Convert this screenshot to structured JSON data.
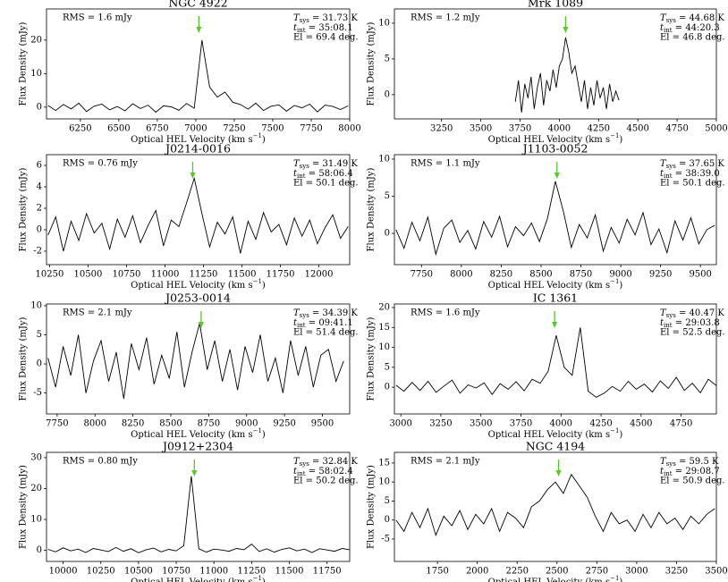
{
  "chart_data": [
    {
      "type": "line",
      "title": "NGC 4922",
      "color": "#000000",
      "arrow_color": "#55cc22",
      "arrow_x": 7020,
      "annotations": {
        "rms": "RMS = 1.6 mJy",
        "tsys": [
          "T",
          "sys",
          " = 31.73 K"
        ],
        "tint": [
          "t",
          "int",
          " = 35:08.1"
        ],
        "el": "El = 69.4 deg."
      },
      "xlabel": [
        "Optical HEL Velocity (km s",
        "−1",
        ")"
      ],
      "ylabel": "Flux Density (mJy)",
      "xlim": [
        6030,
        8000
      ],
      "ylim": [
        -3.5,
        29.3
      ],
      "xticks": [
        6250,
        6500,
        6750,
        7000,
        7250,
        7500,
        7750,
        8000
      ],
      "yticks": [
        0,
        10,
        20
      ],
      "x": [
        6040,
        6090,
        6140,
        6190,
        6240,
        6290,
        6340,
        6390,
        6440,
        6490,
        6540,
        6590,
        6640,
        6690,
        6740,
        6790,
        6840,
        6890,
        6940,
        6990,
        7040,
        7090,
        7140,
        7190,
        7240,
        7290,
        7340,
        7390,
        7440,
        7490,
        7540,
        7590,
        7640,
        7690,
        7740,
        7790,
        7840,
        7890,
        7940,
        7990
      ],
      "values": [
        0.5,
        -1,
        0.8,
        -0.5,
        1.2,
        -1.3,
        0.3,
        0.9,
        -0.8,
        0.2,
        -1.1,
        1.0,
        -0.4,
        0.6,
        -1.5,
        0.4,
        0.1,
        -0.9,
        1.1,
        -0.3,
        20,
        6,
        3,
        4.5,
        1.5,
        0.8,
        -0.6,
        1.2,
        -1.0,
        0.3,
        0.7,
        -1.2,
        0.5,
        -0.2,
        0.9,
        -1.4,
        0.6,
        0.2,
        -0.7,
        0.4
      ]
    },
    {
      "type": "line",
      "title": "Mrk 1089",
      "color": "#000000",
      "arrow_color": "#55cc22",
      "arrow_x": 4040,
      "annotations": {
        "rms": "RMS = 1.2 mJy",
        "tsys": [
          "T",
          "sys",
          " = 44.68 K"
        ],
        "tint": [
          "t",
          "int",
          " = 44:20.3"
        ],
        "el": "El = 46.8 deg."
      },
      "xlabel": [
        "Optical HEL Velocity (km s",
        "−1",
        ")"
      ],
      "ylabel": "Flux Density (mJy)",
      "xlim": [
        2950,
        5000
      ],
      "ylim": [
        -3.4,
        12
      ],
      "xticks": [
        3250,
        3500,
        3750,
        4000,
        4250,
        4500,
        4750,
        5000
      ],
      "yticks": [
        0,
        5,
        10
      ],
      "x": [
        3720,
        3740,
        3760,
        3780,
        3800,
        3820,
        3840,
        3860,
        3880,
        3900,
        3920,
        3940,
        3960,
        3980,
        4000,
        4020,
        4040,
        4060,
        4080,
        4100,
        4120,
        4140,
        4160,
        4180,
        4200,
        4220,
        4240,
        4260,
        4280,
        4300,
        4320,
        4340,
        4360,
        4380
      ],
      "values": [
        -1,
        2,
        -2.5,
        1.5,
        -0.5,
        2.5,
        -2,
        1,
        3,
        -1.5,
        2,
        0.5,
        3.5,
        1,
        4,
        5,
        8,
        6,
        3,
        4,
        1.5,
        -1,
        2,
        -2,
        1,
        -1.5,
        2,
        -0.5,
        1,
        -2,
        1.5,
        -1,
        0.5,
        -0.8
      ]
    },
    {
      "type": "line",
      "title": "J0214-0016",
      "color": "#000000",
      "arrow_color": "#55cc22",
      "arrow_x": 11180,
      "annotations": {
        "rms": "RMS = 0.76 mJy",
        "tsys": [
          "T",
          "sys",
          " = 31.49 K"
        ],
        "tint": [
          "t",
          "int",
          " = 58:06.4"
        ],
        "el": "El = 50.1 deg."
      },
      "xlabel": [
        "Optical HEL Velocity (km s",
        "−1",
        ")"
      ],
      "ylabel": "Flux Density (mJy)",
      "xlim": [
        10230,
        12200
      ],
      "ylim": [
        -3.25,
        7
      ],
      "xticks": [
        10250,
        10500,
        10750,
        11000,
        11250,
        11500,
        11750,
        12000
      ],
      "yticks": [
        -2,
        0,
        2,
        4,
        6
      ],
      "x": [
        10240,
        10290,
        10340,
        10390,
        10440,
        10490,
        10540,
        10590,
        10640,
        10690,
        10740,
        10790,
        10840,
        10890,
        10940,
        10990,
        11040,
        11090,
        11140,
        11190,
        11240,
        11290,
        11340,
        11390,
        11440,
        11490,
        11540,
        11590,
        11640,
        11690,
        11740,
        11790,
        11840,
        11890,
        11940,
        11990,
        12040,
        12090,
        12140,
        12190
      ],
      "values": [
        -0.5,
        1.2,
        -2,
        0.8,
        -1,
        1.5,
        -0.3,
        0.6,
        -1.8,
        1,
        -0.7,
        1.3,
        -1.2,
        0.4,
        1.8,
        -1.5,
        0.9,
        0.3,
        2.5,
        4.8,
        1.5,
        -1.6,
        0.7,
        -0.4,
        1.2,
        -2.2,
        0.8,
        -0.9,
        1.6,
        -0.2,
        0.5,
        -1.4,
        1.1,
        -0.6,
        0.9,
        -1.3,
        0.2,
        1.4,
        -0.8,
        0.3
      ]
    },
    {
      "type": "line",
      "title": "J1103-0052",
      "color": "#000000",
      "arrow_color": "#55cc22",
      "arrow_x": 8600,
      "annotations": {
        "rms": "RMS = 1.1 mJy",
        "tsys": [
          "T",
          "sys",
          " = 37.65 K"
        ],
        "tint": [
          "t",
          "int",
          " = 38:39.0"
        ],
        "el": "El = 50.1 deg."
      },
      "xlabel": [
        "Optical HEL Velocity (km s",
        "−1",
        ")"
      ],
      "ylabel": "Flux Density (mJy)",
      "xlim": [
        7580,
        9600
      ],
      "ylim": [
        -4.2,
        10.6
      ],
      "xticks": [
        7750,
        8000,
        8250,
        8500,
        8750,
        9000,
        9250,
        9500
      ],
      "yticks": [
        0,
        5,
        10
      ],
      "x": [
        7590,
        7640,
        7690,
        7740,
        7790,
        7840,
        7890,
        7940,
        7990,
        8040,
        8090,
        8140,
        8190,
        8240,
        8290,
        8340,
        8390,
        8440,
        8490,
        8540,
        8590,
        8640,
        8690,
        8740,
        8790,
        8840,
        8890,
        8940,
        8990,
        9040,
        9090,
        9140,
        9190,
        9240,
        9290,
        9340,
        9390,
        9440,
        9490,
        9540,
        9590
      ],
      "values": [
        0.5,
        -2,
        1.5,
        -1,
        2.2,
        -2.8,
        0.7,
        1.8,
        -1.2,
        0.4,
        -2.1,
        1.6,
        -0.5,
        2.3,
        -1.8,
        0.9,
        -0.3,
        1.4,
        -1.1,
        2,
        7,
        3,
        -1.9,
        1.2,
        -0.6,
        2.5,
        -2.4,
        0.8,
        -1.3,
        1.9,
        -0.2,
        2.8,
        -1.5,
        0.6,
        -2.6,
        1.7,
        -0.9,
        2.1,
        -1.4,
        0.5,
        1.1
      ]
    },
    {
      "type": "line",
      "title": "J0253-0014",
      "color": "#000000",
      "arrow_color": "#55cc22",
      "arrow_x": 8700,
      "annotations": {
        "rms": "RMS = 2.1 mJy",
        "tsys": [
          "T",
          "sys",
          " = 34.39 K"
        ],
        "tint": [
          "t",
          "int",
          " = 09:41.1"
        ],
        "el": "El = 51.4 deg."
      },
      "xlabel": [
        "Optical HEL Velocity (km s",
        "−1",
        ")"
      ],
      "ylabel": "Flux Density (mJy)",
      "xlim": [
        7680,
        9680
      ],
      "ylim": [
        -8.6,
        10.3
      ],
      "xticks": [
        7750,
        8000,
        8250,
        8500,
        8750,
        9000,
        9250,
        9500
      ],
      "yticks": [
        -5,
        0,
        5,
        10
      ],
      "x": [
        7690,
        7740,
        7790,
        7840,
        7890,
        7940,
        7990,
        8040,
        8090,
        8140,
        8190,
        8240,
        8290,
        8340,
        8390,
        8440,
        8490,
        8540,
        8590,
        8640,
        8690,
        8740,
        8790,
        8840,
        8890,
        8940,
        8990,
        9040,
        9090,
        9140,
        9190,
        9240,
        9290,
        9340,
        9390,
        9440,
        9490,
        9540,
        9590,
        9640
      ],
      "values": [
        1,
        -4,
        3,
        -2,
        5,
        -5,
        0.5,
        4,
        -3,
        2,
        -6,
        3.5,
        -1,
        4.5,
        -3.5,
        1.5,
        -2.5,
        5.5,
        -4,
        2,
        7,
        -1,
        4,
        -3,
        2.5,
        -4.5,
        3,
        -1.5,
        5,
        -3,
        1,
        -5,
        4,
        -2,
        3,
        -4,
        1.5,
        2.5,
        -3,
        0.5
      ]
    },
    {
      "type": "line",
      "title": "IC 1361",
      "color": "#000000",
      "arrow_color": "#55cc22",
      "arrow_x": 3960,
      "annotations": {
        "rms": "RMS = 1.6 mJy",
        "tsys": [
          "T",
          "sys",
          " = 40.47 K"
        ],
        "tint": [
          "t",
          "int",
          " = 29:03.8"
        ],
        "el": "El = 52.5 deg."
      },
      "xlabel": [
        "Optical HEL Velocity (km s",
        "−1",
        ")"
      ],
      "ylabel": "Flux Density (mJy)",
      "xlim": [
        2960,
        4970
      ],
      "ylim": [
        -6.7,
        20.9
      ],
      "xticks": [
        3000,
        3250,
        3500,
        3750,
        4000,
        4250,
        4500,
        4750
      ],
      "yticks": [
        0,
        5,
        10,
        15,
        20
      ],
      "x": [
        2970,
        3020,
        3070,
        3120,
        3170,
        3220,
        3270,
        3320,
        3370,
        3420,
        3470,
        3520,
        3570,
        3620,
        3670,
        3720,
        3770,
        3820,
        3870,
        3920,
        3970,
        4020,
        4070,
        4120,
        4170,
        4220,
        4270,
        4320,
        4370,
        4420,
        4470,
        4520,
        4570,
        4620,
        4670,
        4720,
        4770,
        4820,
        4870,
        4920,
        4970
      ],
      "values": [
        0.5,
        -1,
        1.2,
        -0.8,
        1.5,
        -1.3,
        0.3,
        1.8,
        -1.5,
        0.6,
        -0.2,
        1.1,
        -1.8,
        0.9,
        -0.5,
        1.4,
        -0.9,
        2,
        1,
        4,
        13,
        5,
        3,
        15,
        -1,
        -2.5,
        -1.5,
        0.2,
        -1,
        1.5,
        -0.5,
        0.8,
        -1.2,
        1.6,
        -0.3,
        2.5,
        -0.8,
        1,
        -1.4,
        2,
        0.4
      ]
    },
    {
      "type": "line",
      "title": "J0912+2304",
      "color": "#000000",
      "arrow_color": "#55cc22",
      "arrow_x": 10870,
      "annotations": {
        "rms": "RMS = 0.80 mJy",
        "tsys": [
          "T",
          "sys",
          " = 32.84 K"
        ],
        "tint": [
          "t",
          "int",
          " = 58:02.4"
        ],
        "el": "El = 50.2 deg."
      },
      "xlabel": [
        "Optical HEL Velocity (km s",
        "−1",
        ")"
      ],
      "ylabel": "Flux Density (mJy)",
      "xlim": [
        9890,
        11900
      ],
      "ylim": [
        -3.6,
        31.7
      ],
      "xticks": [
        10000,
        10250,
        10500,
        10750,
        11000,
        11250,
        11500,
        11750
      ],
      "yticks": [
        0,
        10,
        20,
        30
      ],
      "x": [
        9900,
        9950,
        10000,
        10050,
        10100,
        10150,
        10200,
        10250,
        10300,
        10350,
        10400,
        10450,
        10500,
        10550,
        10600,
        10650,
        10700,
        10750,
        10800,
        10850,
        10900,
        10950,
        11000,
        11050,
        11100,
        11150,
        11200,
        11250,
        11300,
        11350,
        11400,
        11450,
        11500,
        11550,
        11600,
        11650,
        11700,
        11750,
        11800,
        11850,
        11900
      ],
      "values": [
        0.3,
        -0.5,
        0.8,
        -0.2,
        0.4,
        -0.7,
        0.6,
        0.1,
        -0.4,
        0.9,
        -0.3,
        0.5,
        -0.8,
        0.2,
        0.7,
        -0.5,
        0.3,
        -0.2,
        1.5,
        24,
        0.5,
        -0.6,
        0.4,
        0.1,
        -0.3,
        0.6,
        0.2,
        2,
        -0.4,
        0.5,
        -0.6,
        0.3,
        0.8,
        -0.2,
        0.4,
        -0.7,
        0.5,
        0.1,
        -0.3,
        0.6,
        0.2
      ]
    },
    {
      "type": "line",
      "title": "NGC 4194",
      "color": "#000000",
      "arrow_color": "#55cc22",
      "arrow_x": 2510,
      "annotations": {
        "rms": "RMS = 2.1 mJy",
        "tsys": [
          "T",
          "sys",
          " = 59.5 K"
        ],
        "tint": [
          "t",
          "int",
          " = 29:08.7"
        ],
        "el": "El = 50.9 deg."
      },
      "xlabel": [
        "Optical HEL Velocity (km s",
        "−1",
        ")"
      ],
      "ylabel": "Flux Density (mJy)",
      "xlim": [
        1480,
        3500
      ],
      "ylim": [
        -10.9,
        17.8
      ],
      "xticks": [
        1750,
        2000,
        2250,
        2500,
        2750,
        3000,
        3250,
        3500
      ],
      "yticks": [
        -5,
        0,
        5,
        10,
        15
      ],
      "x": [
        1490,
        1540,
        1590,
        1640,
        1690,
        1740,
        1790,
        1840,
        1890,
        1940,
        1990,
        2040,
        2090,
        2140,
        2190,
        2240,
        2290,
        2340,
        2390,
        2440,
        2490,
        2540,
        2590,
        2640,
        2690,
        2740,
        2790,
        2840,
        2890,
        2940,
        2990,
        3040,
        3090,
        3140,
        3190,
        3240,
        3290,
        3340,
        3390,
        3440,
        3490
      ],
      "values": [
        0,
        -3,
        2,
        -2,
        3,
        -4,
        1,
        -1.5,
        2.5,
        -2.5,
        1.5,
        -1,
        3,
        -3,
        2,
        0.5,
        -2,
        3.5,
        5,
        8,
        10,
        7,
        12,
        9,
        6,
        1,
        -3,
        2,
        -1,
        0,
        -3,
        1.5,
        -2,
        2,
        -1,
        0.5,
        -2.5,
        1,
        -1,
        1.5,
        3
      ]
    }
  ]
}
